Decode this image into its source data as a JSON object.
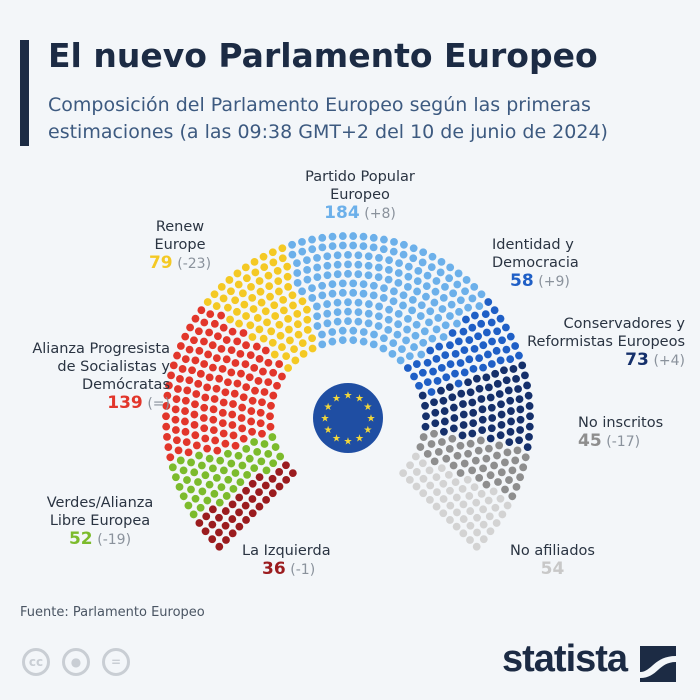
{
  "header": {
    "title": "El nuevo Parlamento Europeo",
    "subtitle": "Composición del Parlamento Europeo según las primeras estimaciones (a las 09:38 GMT+2 del 10 de junio de 2024)"
  },
  "chart_data": {
    "type": "parliament",
    "total_seats": 720,
    "groups": [
      {
        "name": "La Izquierda",
        "seats": 36,
        "change": "(-1)",
        "color": "#9b1c1f"
      },
      {
        "name": "Verdes/Alianza Libre Europea",
        "seats": 52,
        "change": "(-19)",
        "color": "#7cbb2c"
      },
      {
        "name": "Alianza Progresista de Socialistas y Demócratas",
        "seats": 139,
        "change": "(=)",
        "color": "#e2362b"
      },
      {
        "name": "Renew Europe",
        "seats": 79,
        "change": "(-23)",
        "color": "#f4c924"
      },
      {
        "name": "Partido Popular Europeo",
        "seats": 184,
        "change": "(+8)",
        "color": "#6cb0ea"
      },
      {
        "name": "Identidad y Democracia",
        "seats": 58,
        "change": "(+9)",
        "color": "#1f5fc6"
      },
      {
        "name": "Conservadores y Reformistas Europeos",
        "seats": 73,
        "change": "(+4)",
        "color": "#15306b"
      },
      {
        "name": "No inscritos",
        "seats": 45,
        "change": "(-17)",
        "color": "#8e8e8e"
      },
      {
        "name": "No afiliados",
        "seats": 54,
        "change": "",
        "color": "#d3d3d3"
      }
    ]
  },
  "footer": {
    "source": "Fuente: Parlamento Europeo",
    "license_icons": [
      "cc-icon",
      "by-icon",
      "nd-icon"
    ],
    "cc": "cc",
    "nd": "=",
    "logo": "statista"
  }
}
